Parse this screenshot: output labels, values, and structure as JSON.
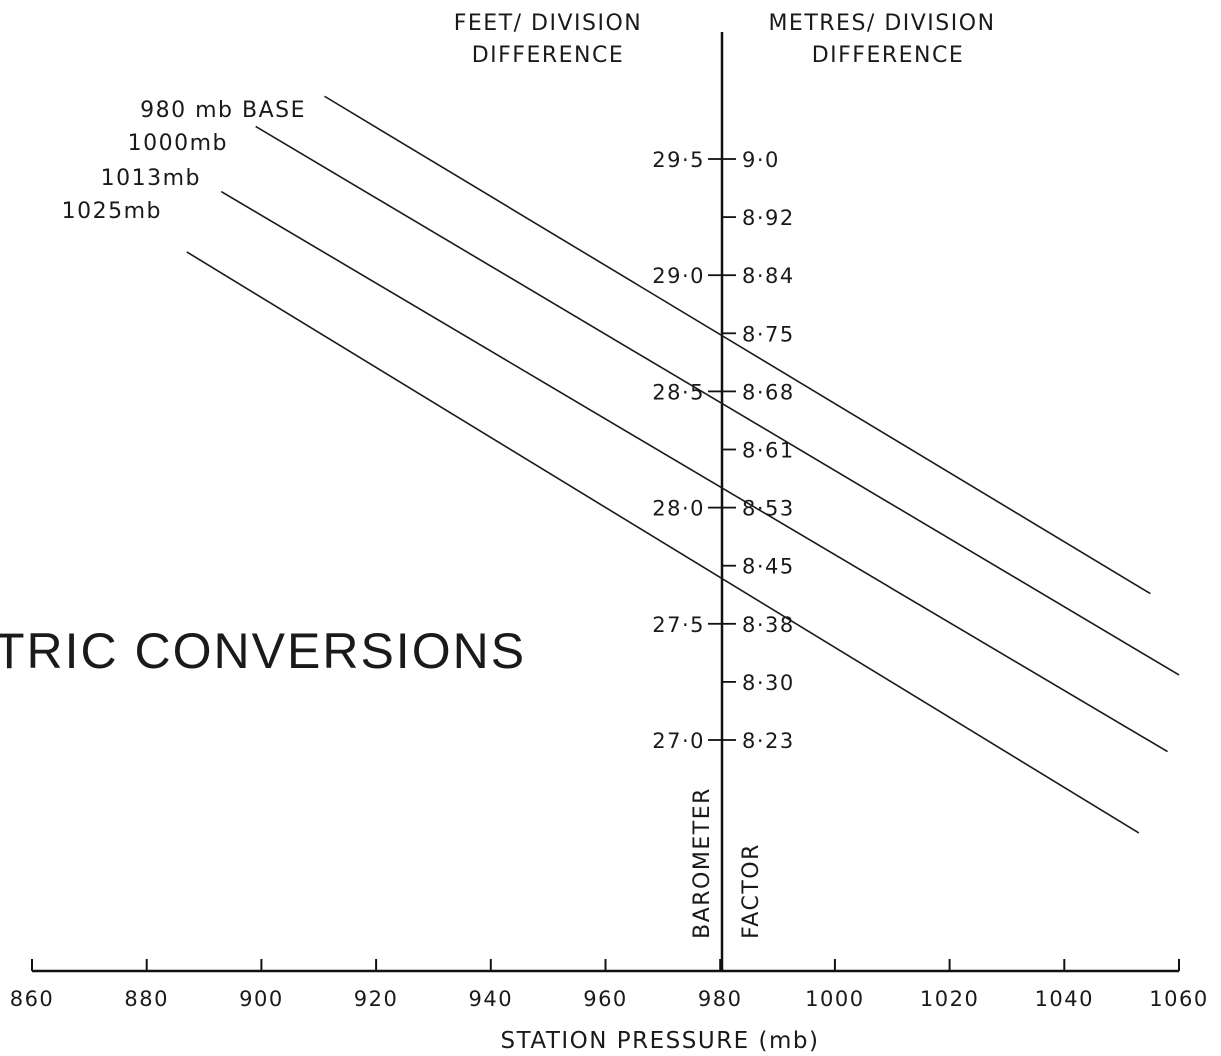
{
  "chart_data": {
    "type": "line",
    "title": "TRIC  CONVERSIONS",
    "xlabel": "STATION  PRESSURE  (mb)",
    "ylabel": "",
    "xlim": [
      860,
      1060
    ],
    "x_ticks": [
      860,
      880,
      900,
      920,
      940,
      960,
      980,
      1000,
      1020,
      1040,
      1060
    ],
    "left_axis_header": [
      "FEET/ DIVISION",
      "DIFFERENCE"
    ],
    "right_axis_header": [
      "METRES/ DIVISION",
      "DIFFERENCE"
    ],
    "axis_labels_vertical": [
      "BAROMETER",
      "FACTOR"
    ],
    "feet_ticks": [
      "29·5",
      "29·0",
      "28·5",
      "28·0",
      "27·5",
      "27·0"
    ],
    "feet_tick_values": [
      29.5,
      29.0,
      28.5,
      28.0,
      27.5,
      27.0
    ],
    "metres_ticks": [
      "9·0",
      "8·92",
      "8·84",
      "8·75",
      "8·68",
      "8·61",
      "8·53",
      "8·45",
      "8·38",
      "8·30",
      "8·23"
    ],
    "metres_tick_values": [
      9.0,
      8.92,
      8.84,
      8.75,
      8.68,
      8.61,
      8.53,
      8.45,
      8.38,
      8.3,
      8.23
    ],
    "ylim_feet": [
      26.5,
      30.0
    ],
    "grid": false,
    "series": [
      {
        "name": "980 mb  BASE",
        "x": [
          911,
          1055
        ],
        "y": [
          29.77,
          27.63
        ]
      },
      {
        "name": "1000mb",
        "x": [
          899,
          1060
        ],
        "y": [
          29.64,
          27.28
        ]
      },
      {
        "name": "1013mb",
        "x": [
          893,
          1058
        ],
        "y": [
          29.36,
          26.95
        ]
      },
      {
        "name": "1025mb",
        "x": [
          887,
          1053
        ],
        "y": [
          29.1,
          26.6
        ]
      }
    ]
  }
}
